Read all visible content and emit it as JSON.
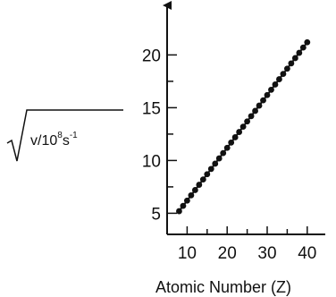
{
  "chart_data": {
    "type": "line",
    "title": "",
    "xlabel": "Atomic Number (Z)",
    "ylabel": {
      "base": "v/10",
      "exp1": "8",
      "unit": "s",
      "exp2": "-1"
    },
    "xlim": [
      5,
      43
    ],
    "ylim": [
      3,
      22
    ],
    "x_ticks": [
      10,
      20,
      30,
      40
    ],
    "y_ticks": [
      5,
      10,
      15,
      20
    ],
    "grid": false,
    "legend": "none",
    "colors": {
      "line": "#111111",
      "marker": "#111111",
      "axis": "#111111"
    },
    "series": [
      {
        "x": [
          8,
          9,
          10,
          11,
          12,
          13,
          14,
          15,
          16,
          17,
          18,
          19,
          20,
          21,
          22,
          23,
          24,
          25,
          26,
          27,
          28,
          29,
          30,
          31,
          32,
          33,
          34,
          35,
          36,
          37,
          38,
          39,
          40
        ],
        "y": [
          5.2,
          5.7,
          6.2,
          6.7,
          7.2,
          7.7,
          8.2,
          8.7,
          9.2,
          9.7,
          10.2,
          10.7,
          11.2,
          11.7,
          12.2,
          12.7,
          13.2,
          13.7,
          14.2,
          14.7,
          15.2,
          15.7,
          16.2,
          16.7,
          17.2,
          17.7,
          18.2,
          18.7,
          19.2,
          19.7,
          20.2,
          20.7,
          21.2
        ]
      }
    ]
  }
}
